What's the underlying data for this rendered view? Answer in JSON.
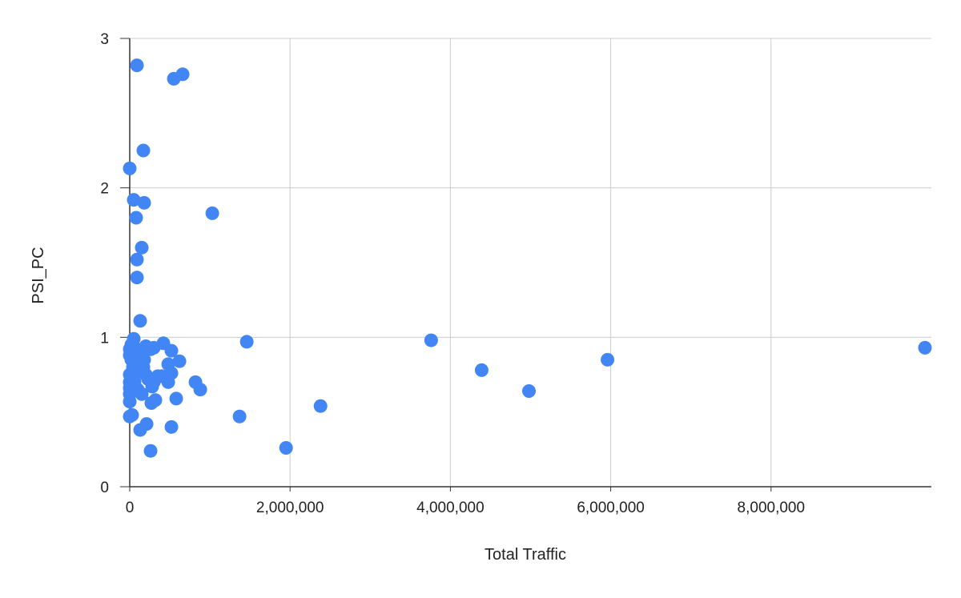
{
  "chart_data": {
    "type": "scatter",
    "title": "",
    "xlabel": "Total Traffic",
    "ylabel": "PSI_PC",
    "xlim": [
      0,
      10000000
    ],
    "ylim": [
      0,
      3
    ],
    "x_ticks": [
      0,
      2000000,
      4000000,
      6000000,
      8000000
    ],
    "x_tick_labels": [
      "0",
      "2,000,000",
      "4,000,000",
      "6,000,000",
      "8,000,000"
    ],
    "y_ticks": [
      0,
      1,
      2,
      3
    ],
    "y_tick_labels": [
      "0",
      "1",
      "2",
      "3"
    ],
    "grid": true,
    "legend": "none",
    "point_color": "#4285f4",
    "series": [
      {
        "points": [
          [
            90000,
            2.82
          ],
          [
            550000,
            2.73
          ],
          [
            660000,
            2.76
          ],
          [
            170000,
            2.25
          ],
          [
            0,
            2.13
          ],
          [
            50000,
            1.92
          ],
          [
            180000,
            1.9
          ],
          [
            80000,
            1.8
          ],
          [
            1030000,
            1.83
          ],
          [
            150000,
            1.6
          ],
          [
            90000,
            1.52
          ],
          [
            90000,
            1.4
          ],
          [
            130000,
            1.11
          ],
          [
            50000,
            0.99
          ],
          [
            20000,
            0.95
          ],
          [
            0,
            0.92
          ],
          [
            0,
            0.88
          ],
          [
            20000,
            0.85
          ],
          [
            60000,
            0.93
          ],
          [
            90000,
            0.9
          ],
          [
            120000,
            0.88
          ],
          [
            150000,
            0.86
          ],
          [
            180000,
            0.85
          ],
          [
            200000,
            0.94
          ],
          [
            230000,
            0.93
          ],
          [
            260000,
            0.92
          ],
          [
            300000,
            0.93
          ],
          [
            420000,
            0.96
          ],
          [
            520000,
            0.91
          ],
          [
            620000,
            0.84
          ],
          [
            480000,
            0.82
          ],
          [
            520000,
            0.76
          ],
          [
            480000,
            0.7
          ],
          [
            400000,
            0.74
          ],
          [
            350000,
            0.74
          ],
          [
            300000,
            0.7
          ],
          [
            280000,
            0.67
          ],
          [
            320000,
            0.58
          ],
          [
            270000,
            0.56
          ],
          [
            150000,
            0.62
          ],
          [
            100000,
            0.65
          ],
          [
            60000,
            0.7
          ],
          [
            0,
            0.75
          ],
          [
            0,
            0.7
          ],
          [
            0,
            0.66
          ],
          [
            0,
            0.62
          ],
          [
            0,
            0.57
          ],
          [
            0,
            0.47
          ],
          [
            30000,
            0.48
          ],
          [
            120000,
            0.78
          ],
          [
            170000,
            0.8
          ],
          [
            200000,
            0.75
          ],
          [
            230000,
            0.72
          ],
          [
            80000,
            0.77
          ],
          [
            40000,
            0.8
          ],
          [
            210000,
            0.42
          ],
          [
            130000,
            0.38
          ],
          [
            520000,
            0.4
          ],
          [
            260000,
            0.24
          ],
          [
            580000,
            0.59
          ],
          [
            820000,
            0.7
          ],
          [
            880000,
            0.65
          ],
          [
            1460000,
            0.97
          ],
          [
            1370000,
            0.47
          ],
          [
            1950000,
            0.26
          ],
          [
            2380000,
            0.54
          ],
          [
            3760000,
            0.98
          ],
          [
            4390000,
            0.78
          ],
          [
            4980000,
            0.64
          ],
          [
            5960000,
            0.85
          ],
          [
            9920000,
            0.93
          ]
        ]
      }
    ]
  }
}
